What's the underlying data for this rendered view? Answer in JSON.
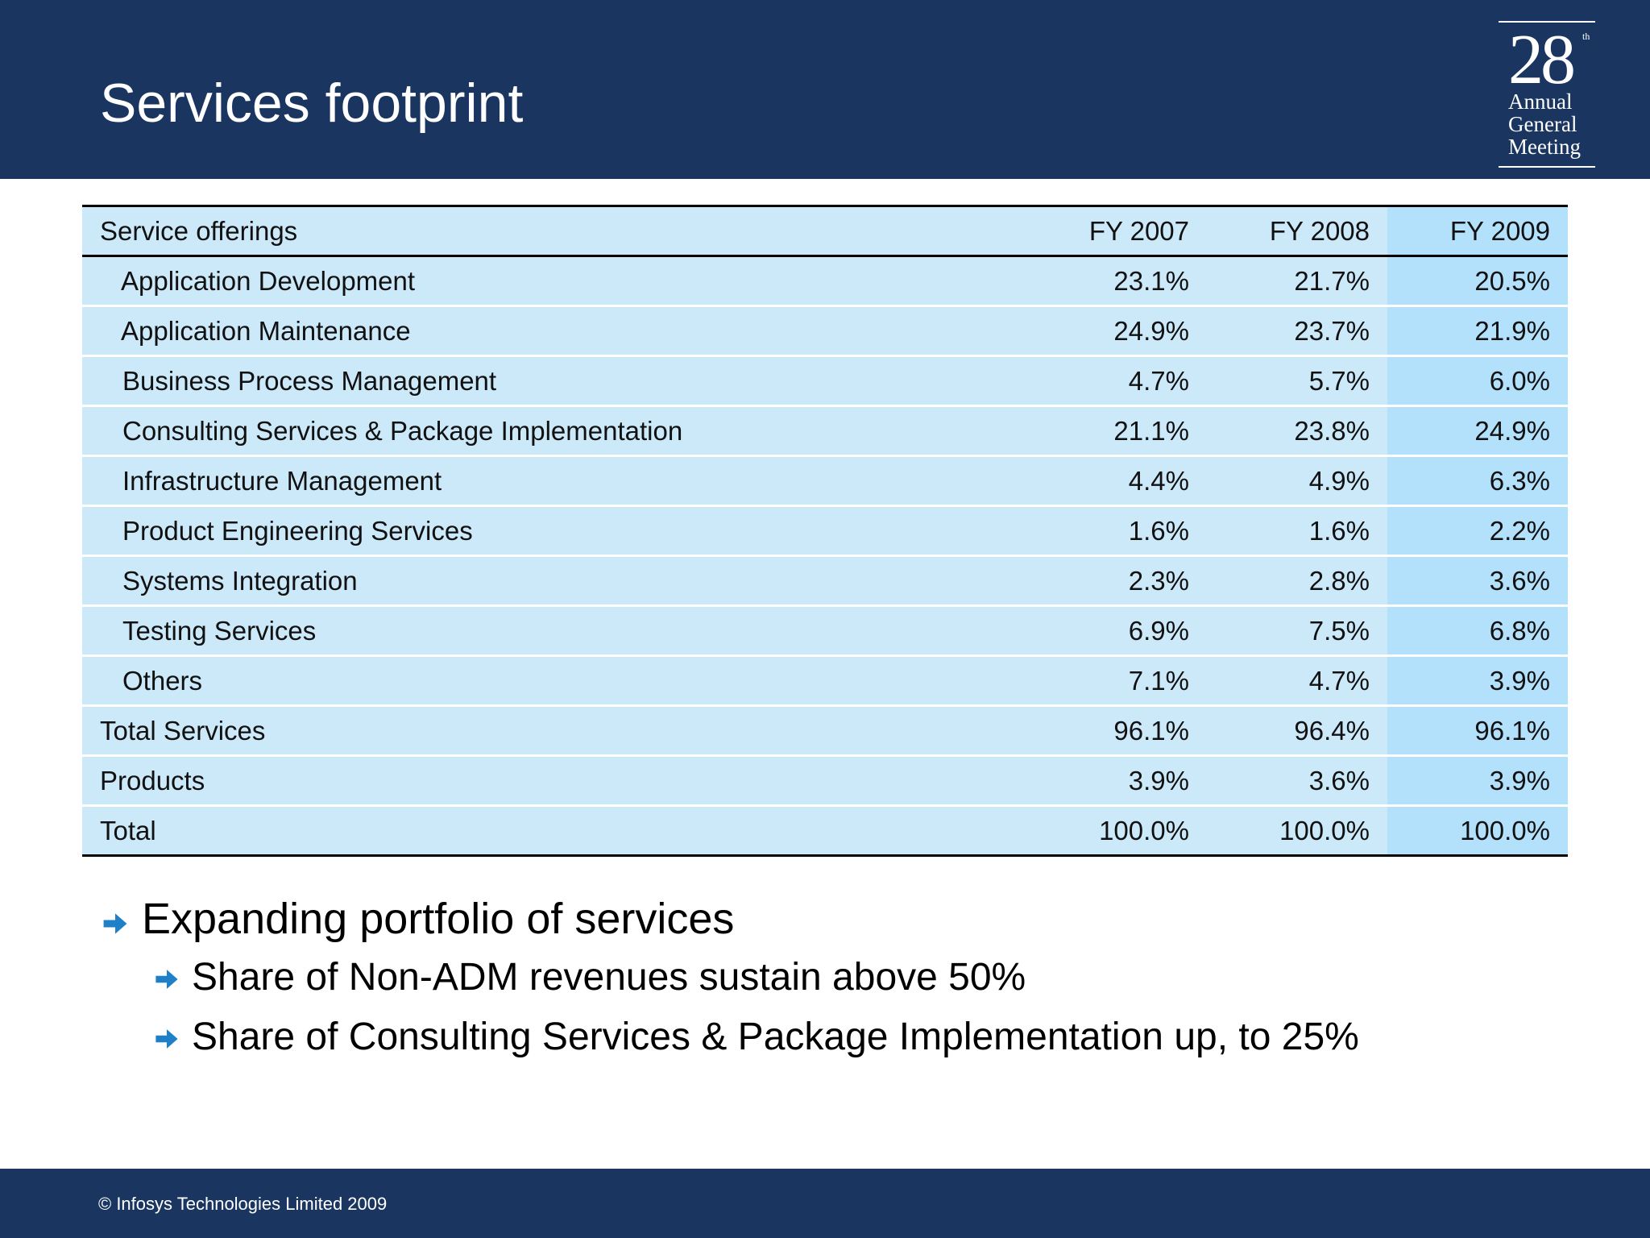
{
  "slide": {
    "title": "Services footprint"
  },
  "logo": {
    "number": "28",
    "superscript": "th",
    "lines": [
      "Annual",
      "General",
      "Meeting"
    ]
  },
  "table": {
    "headers": [
      "Service offerings",
      "FY 2007",
      "FY 2008",
      "FY 2009"
    ],
    "rows": [
      {
        "label": "Application Development",
        "values": [
          "23.1%",
          "21.7%",
          "20.5%"
        ]
      },
      {
        "label": "Application Maintenance",
        "values": [
          "24.9%",
          "23.7%",
          "21.9%"
        ]
      },
      {
        "label": "Business Process Management",
        "values": [
          "4.7%",
          "5.7%",
          "6.0%"
        ]
      },
      {
        "label": "Consulting Services & Package Implementation",
        "values": [
          "21.1%",
          "23.8%",
          "24.9%"
        ]
      },
      {
        "label": "Infrastructure Management",
        "values": [
          "4.4%",
          "4.9%",
          "6.3%"
        ]
      },
      {
        "label": "Product Engineering Services",
        "values": [
          "1.6%",
          "1.6%",
          "2.2%"
        ]
      },
      {
        "label": "Systems Integration",
        "values": [
          "2.3%",
          "2.8%",
          "3.6%"
        ]
      },
      {
        "label": "Testing Services",
        "values": [
          "6.9%",
          "7.5%",
          "6.8%"
        ]
      },
      {
        "label": "Others",
        "values": [
          "7.1%",
          "4.7%",
          "3.9%"
        ]
      },
      {
        "label": "Total Services",
        "values": [
          "96.1%",
          "96.4%",
          "96.1%"
        ]
      },
      {
        "label": "Products",
        "values": [
          "3.9%",
          "3.6%",
          "3.9%"
        ]
      },
      {
        "label": "Total",
        "values": [
          "100.0%",
          "100.0%",
          "100.0%"
        ]
      }
    ]
  },
  "bullets": {
    "main": "Expanding portfolio of services",
    "sub": [
      "Share of Non-ADM revenues sustain above 50%",
      "Share of Consulting Services & Package Implementation up, to 25%"
    ]
  },
  "footer": {
    "copyright": "© Infosys Technologies Limited 2009"
  },
  "icons": {
    "bullet": "arrow-right-icon"
  },
  "colors": {
    "brand_navy": "#1a3660",
    "table_fill": "#cce9fa",
    "highlight_column": "#b3e0fb",
    "bullet_arrow": "#1f7fc7"
  }
}
